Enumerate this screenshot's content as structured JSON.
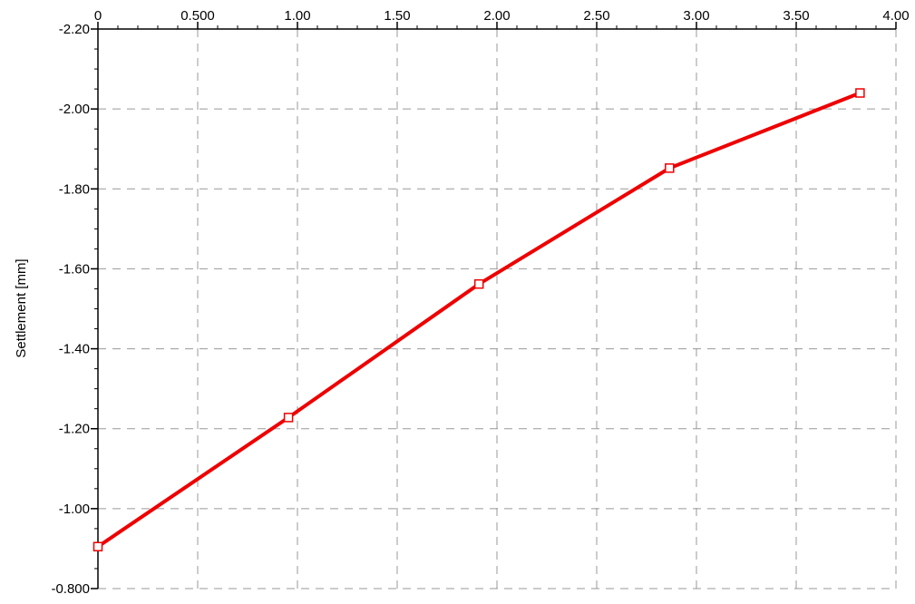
{
  "chart_data": {
    "type": "line",
    "title": "",
    "xlabel": "",
    "ylabel": "Settlement [mm]",
    "xlim": [
      0,
      4.0
    ],
    "ylim": [
      -0.8,
      -2.2
    ],
    "x_axis_position": "top",
    "y_inverted": true,
    "grid": true,
    "x_ticks": [
      0,
      0.5,
      1.0,
      1.5,
      2.0,
      2.5,
      3.0,
      3.5,
      4.0
    ],
    "x_tick_labels": [
      "0",
      "0.500",
      "1.00",
      "1.50",
      "2.00",
      "2.50",
      "3.00",
      "3.50",
      "4.00"
    ],
    "y_ticks": [
      -2.2,
      -2.0,
      -1.8,
      -1.6,
      -1.4,
      -1.2,
      -1.0,
      -0.8
    ],
    "y_tick_labels": [
      "-2.20",
      "-2.00",
      "-1.80",
      "-1.60",
      "-1.40",
      "-1.20",
      "-1.00",
      "-0.800"
    ],
    "series": [
      {
        "color": "#ee0000",
        "marker": "square",
        "x": [
          0,
          0.955,
          1.91,
          2.865,
          3.82
        ],
        "y": [
          -0.905,
          -1.228,
          -1.562,
          -1.852,
          -2.04
        ]
      }
    ]
  }
}
